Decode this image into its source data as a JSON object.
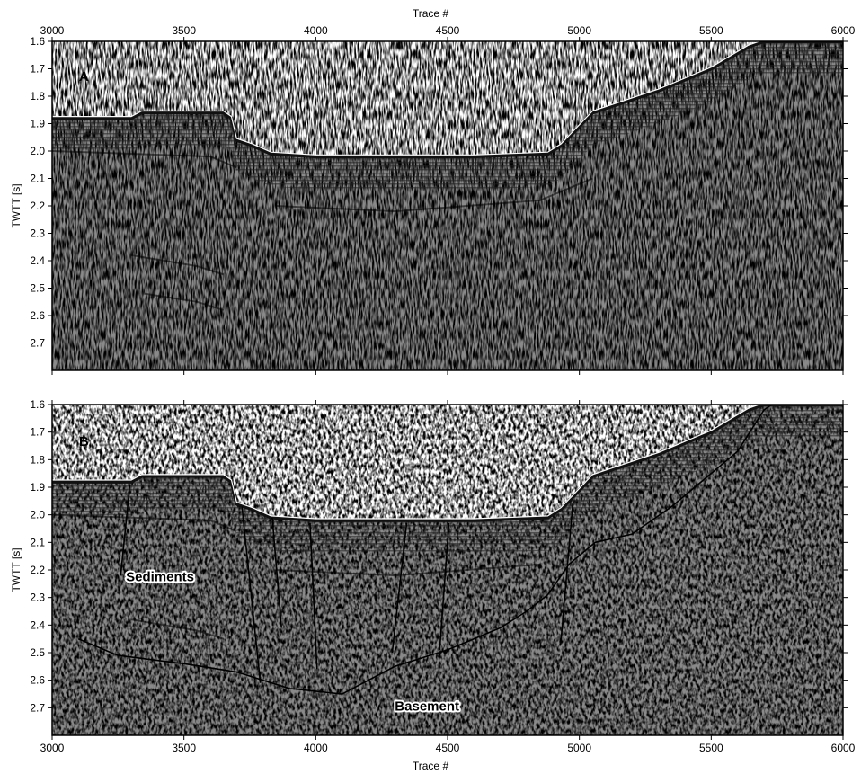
{
  "figure": {
    "top_xlabel": "Trace #",
    "bottom_xlabel": "Trace #",
    "colors": {
      "background": "#ffffff",
      "interpretation_lines": "#000000"
    }
  },
  "panels": [
    {
      "letter": "A",
      "ylabel": "TWTT [s]",
      "x_range": [
        3000,
        6000
      ],
      "y_range": [
        1.6,
        2.8
      ],
      "x_ticks": [
        "3000",
        "3500",
        "4000",
        "4500",
        "5000",
        "5500",
        "6000"
      ],
      "y_ticks": [
        "1.6",
        "1.7",
        "1.8",
        "1.9",
        "2.0",
        "2.1",
        "2.2",
        "2.3",
        "2.4",
        "2.5",
        "2.6",
        "2.7"
      ]
    },
    {
      "letter": "B",
      "ylabel": "TWTT [s]",
      "x_range": [
        3000,
        6000
      ],
      "y_range": [
        1.6,
        2.8
      ],
      "x_ticks": [
        "3000",
        "3500",
        "4000",
        "4500",
        "5000",
        "5500",
        "6000"
      ],
      "y_ticks": [
        "1.6",
        "1.7",
        "1.8",
        "1.9",
        "2.0",
        "2.1",
        "2.2",
        "2.3",
        "2.4",
        "2.5",
        "2.6",
        "2.7"
      ],
      "annotations": [
        {
          "text": "Sediments",
          "trace": 3280,
          "twtt": 2.24
        },
        {
          "text": "Basement",
          "trace": 4300,
          "twtt": 2.71
        }
      ]
    }
  ],
  "seafloor": [
    [
      3000,
      1.88
    ],
    [
      3300,
      1.88
    ],
    [
      3340,
      1.86
    ],
    [
      3650,
      1.86
    ],
    [
      3680,
      1.88
    ],
    [
      3700,
      1.96
    ],
    [
      3760,
      1.98
    ],
    [
      3830,
      2.01
    ],
    [
      4000,
      2.02
    ],
    [
      4600,
      2.02
    ],
    [
      4880,
      2.01
    ],
    [
      4930,
      1.98
    ],
    [
      4980,
      1.93
    ],
    [
      5050,
      1.86
    ],
    [
      5300,
      1.78
    ],
    [
      5500,
      1.7
    ],
    [
      5640,
      1.62
    ],
    [
      5700,
      1.6
    ],
    [
      6000,
      1.6
    ]
  ],
  "basement_line": [
    [
      3100,
      2.45
    ],
    [
      3250,
      2.51
    ],
    [
      3500,
      2.54
    ],
    [
      3700,
      2.57
    ],
    [
      3900,
      2.63
    ],
    [
      4100,
      2.65
    ],
    [
      4300,
      2.55
    ],
    [
      4500,
      2.49
    ],
    [
      4700,
      2.41
    ],
    [
      4800,
      2.35
    ],
    [
      4880,
      2.29
    ],
    [
      4960,
      2.18
    ],
    [
      5060,
      2.1
    ],
    [
      5200,
      2.07
    ],
    [
      5350,
      1.97
    ],
    [
      5450,
      1.89
    ],
    [
      5600,
      1.77
    ],
    [
      5700,
      1.62
    ],
    [
      5730,
      1.6
    ]
  ],
  "faults": [
    [
      [
        3295,
        1.89
      ],
      [
        3260,
        2.22
      ]
    ],
    [
      [
        3720,
        1.97
      ],
      [
        3790,
        2.61
      ]
    ],
    [
      [
        3835,
        2.01
      ],
      [
        3870,
        2.41
      ]
    ],
    [
      [
        3978,
        2.03
      ],
      [
        4005,
        2.56
      ]
    ],
    [
      [
        4345,
        2.03
      ],
      [
        4290,
        2.5
      ]
    ],
    [
      [
        4505,
        2.03
      ],
      [
        4470,
        2.49
      ]
    ],
    [
      [
        4975,
        1.96
      ],
      [
        4930,
        2.46
      ]
    ]
  ],
  "reflectors_A": [
    [
      [
        3000,
        2.0
      ],
      [
        3600,
        2.02
      ],
      [
        3700,
        2.06
      ]
    ],
    [
      [
        3850,
        2.2
      ],
      [
        4300,
        2.22
      ],
      [
        4850,
        2.18
      ],
      [
        5050,
        2.1
      ]
    ],
    [
      [
        3300,
        2.38
      ],
      [
        3550,
        2.42
      ],
      [
        3650,
        2.45
      ]
    ],
    [
      [
        3350,
        2.52
      ],
      [
        3550,
        2.55
      ],
      [
        3650,
        2.58
      ]
    ]
  ],
  "reflectors_B": [
    [
      [
        3000,
        2.0
      ],
      [
        3600,
        2.02
      ],
      [
        3700,
        2.06
      ]
    ],
    [
      [
        3850,
        2.2
      ],
      [
        4300,
        2.22
      ],
      [
        4850,
        2.18
      ]
    ],
    [
      [
        3300,
        2.38
      ],
      [
        3550,
        2.42
      ],
      [
        3650,
        2.45
      ]
    ]
  ]
}
